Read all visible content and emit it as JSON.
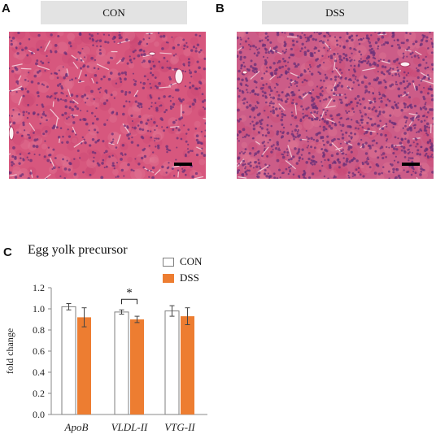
{
  "panels": {
    "a": {
      "letter": "A",
      "condition": "CON"
    },
    "b": {
      "letter": "B",
      "condition": "DSS"
    },
    "c": {
      "letter": "C"
    }
  },
  "colors": {
    "con_fill": "#ffffff",
    "con_stroke": "#7f7f7f",
    "dss_fill": "#ed7d31",
    "tissue_con": "#d7577e",
    "tissue_dss": "#cc5c88",
    "scale_bar": "#000000"
  },
  "chart_data": {
    "type": "bar",
    "title": "Egg yolk precursor",
    "ylabel": "fold change",
    "xlabel": "",
    "categories": [
      "ApoB",
      "VLDL-II",
      "VTG-II"
    ],
    "series": [
      {
        "name": "CON",
        "values": [
          1.02,
          0.97,
          0.98
        ],
        "errors": [
          0.03,
          0.02,
          0.05
        ]
      },
      {
        "name": "DSS",
        "values": [
          0.92,
          0.9,
          0.93
        ],
        "errors": [
          0.09,
          0.03,
          0.08
        ]
      }
    ],
    "ylim": [
      0,
      1.2
    ],
    "yticks": [
      "0.0",
      "0.2",
      "0.4",
      "0.6",
      "0.8",
      "1.0",
      "1.2"
    ],
    "significance": [
      {
        "category": "VLDL-II",
        "label": "*"
      }
    ],
    "legend_position": "top-right",
    "grid": false
  }
}
